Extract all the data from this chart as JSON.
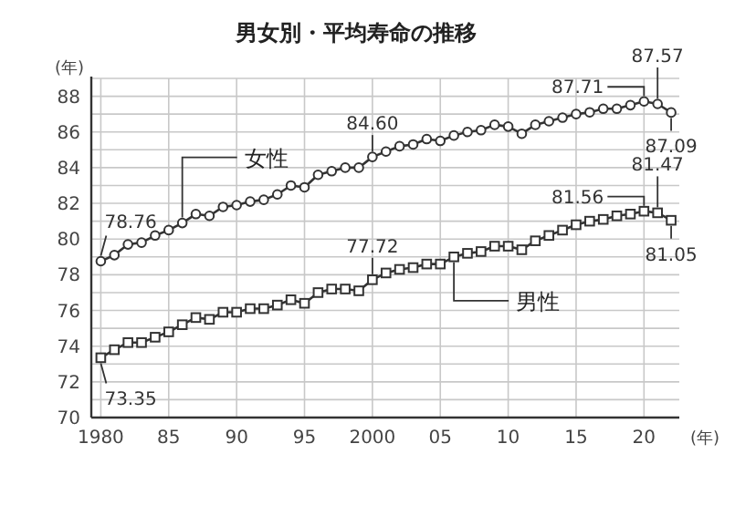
{
  "chart_data": {
    "type": "line",
    "title": "男女別・平均寿命の推移",
    "xlabel": "(年)",
    "ylabel": "(年)",
    "x": [
      1980,
      1981,
      1982,
      1983,
      1984,
      1985,
      1986,
      1987,
      1988,
      1989,
      1990,
      1991,
      1992,
      1993,
      1994,
      1995,
      1996,
      1997,
      1998,
      1999,
      2000,
      2001,
      2002,
      2003,
      2004,
      2005,
      2006,
      2007,
      2008,
      2009,
      2010,
      2011,
      2012,
      2013,
      2014,
      2015,
      2016,
      2017,
      2018,
      2019,
      2020,
      2021,
      2022
    ],
    "series": [
      {
        "name": "女性",
        "color": "#333333",
        "marker": "circle",
        "values": [
          78.76,
          79.1,
          79.7,
          79.8,
          80.2,
          80.5,
          80.9,
          81.4,
          81.3,
          81.8,
          81.9,
          82.1,
          82.2,
          82.5,
          83.0,
          82.9,
          83.6,
          83.8,
          84.0,
          84.0,
          84.6,
          84.9,
          85.2,
          85.3,
          85.6,
          85.5,
          85.8,
          86.0,
          86.1,
          86.4,
          86.3,
          85.9,
          86.4,
          86.6,
          86.8,
          87.0,
          87.1,
          87.3,
          87.3,
          87.5,
          87.71,
          87.57,
          87.09
        ],
        "value_labels": [
          "78.76",
          null,
          null,
          null,
          null,
          null,
          null,
          null,
          null,
          null,
          null,
          null,
          null,
          null,
          null,
          null,
          null,
          null,
          null,
          null,
          "84.60",
          null,
          null,
          null,
          null,
          null,
          null,
          null,
          null,
          null,
          null,
          null,
          null,
          null,
          null,
          null,
          null,
          null,
          null,
          null,
          "87.71",
          "87.57",
          "87.09"
        ]
      },
      {
        "name": "男性",
        "color": "#333333",
        "marker": "square",
        "values": [
          73.35,
          73.8,
          74.2,
          74.2,
          74.5,
          74.8,
          75.2,
          75.6,
          75.5,
          75.9,
          75.9,
          76.1,
          76.1,
          76.3,
          76.6,
          76.4,
          77.0,
          77.2,
          77.2,
          77.1,
          77.72,
          78.1,
          78.3,
          78.4,
          78.6,
          78.6,
          79.0,
          79.2,
          79.3,
          79.6,
          79.6,
          79.4,
          79.9,
          80.2,
          80.5,
          80.8,
          81.0,
          81.1,
          81.3,
          81.4,
          81.56,
          81.47,
          81.05
        ],
        "value_labels": [
          "73.35",
          null,
          null,
          null,
          null,
          null,
          null,
          null,
          null,
          null,
          null,
          null,
          null,
          null,
          null,
          null,
          null,
          null,
          null,
          null,
          "77.72",
          null,
          null,
          null,
          null,
          null,
          null,
          null,
          null,
          null,
          null,
          null,
          null,
          null,
          null,
          null,
          null,
          null,
          null,
          null,
          "81.56",
          "81.47",
          "81.05"
        ]
      }
    ],
    "xlim": [
      1979.3,
      2022.6
    ],
    "xticks": [
      1980,
      {
        "value": 1985,
        "label": "85"
      },
      {
        "value": 1990,
        "label": "90"
      },
      {
        "value": 1995,
        "label": "95"
      },
      2000,
      {
        "value": 2005,
        "label": "05"
      },
      {
        "value": 2010,
        "label": "10"
      },
      {
        "value": 2015,
        "label": "15"
      },
      {
        "value": 2020,
        "label": "20"
      }
    ],
    "ylim": [
      70,
      89
    ],
    "yticks": [
      70,
      {
        "value": 71,
        "label": null
      },
      72,
      {
        "value": 73,
        "label": null
      },
      74,
      {
        "value": 75,
        "label": null
      },
      76,
      {
        "value": 77,
        "label": null
      },
      78,
      {
        "value": 79,
        "label": null
      },
      80,
      {
        "value": 81,
        "label": null
      },
      82,
      {
        "value": 83,
        "label": null
      },
      84,
      {
        "value": 85,
        "label": null
      },
      86,
      {
        "value": 87,
        "label": null
      },
      88,
      {
        "value": 89,
        "label": null
      }
    ],
    "grid": true
  }
}
